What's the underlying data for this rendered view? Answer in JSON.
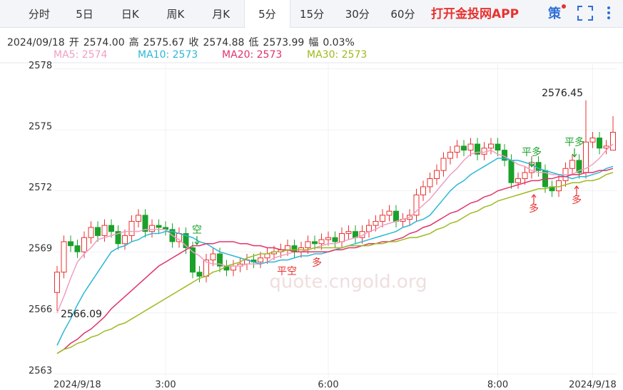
{
  "toolbar": {
    "tabs": [
      "分时",
      "5日",
      "日K",
      "周K",
      "月K",
      "5分",
      "15分",
      "30分",
      "60分"
    ],
    "app_link": "打开金投网APP",
    "strategy": "策"
  },
  "quote": {
    "date": "2024/09/18",
    "fields": [
      {
        "label": "开",
        "value": "2574.00"
      },
      {
        "label": "高",
        "value": "2575.67"
      },
      {
        "label": "收",
        "value": "2574.88"
      },
      {
        "label": "低",
        "value": "2573.99"
      },
      {
        "label": "幅",
        "value": "0.03%"
      }
    ]
  },
  "chart_data": {
    "type": "candlestick",
    "watermark": "quote.cngold.org",
    "signals": [
      "空",
      "平空",
      "多",
      "平多",
      "多",
      "平多",
      "多"
    ],
    "up_color": "#e8312f",
    "down_color": "#1aa12a",
    "ylim": [
      2562.8,
      2578.3
    ],
    "yticks": [
      2563,
      2566,
      2569,
      2572,
      2575,
      2578
    ],
    "grid": true,
    "categories": [
      "2024/9/18",
      null,
      null,
      null,
      null,
      null,
      null,
      null,
      null,
      null,
      null,
      null,
      null,
      null,
      null,
      null,
      "3:00",
      null,
      null,
      null,
      null,
      null,
      null,
      null,
      null,
      null,
      null,
      null,
      null,
      null,
      null,
      null,
      null,
      null,
      null,
      null,
      null,
      null,
      null,
      null,
      "6:00",
      null,
      null,
      null,
      null,
      null,
      null,
      null,
      null,
      null,
      null,
      null,
      null,
      null,
      null,
      null,
      null,
      null,
      null,
      null,
      null,
      null,
      null,
      null,
      null,
      "8:00",
      null,
      null,
      null,
      null,
      null,
      null,
      null,
      null,
      null,
      null,
      null,
      null,
      null,
      "2024/9/18",
      null,
      null,
      null
    ],
    "open": [
      2567.0,
      2568.0,
      2569.5,
      2569.3,
      2569.0,
      2569.7,
      2570.2,
      2569.8,
      2570.3,
      2570.0,
      2569.4,
      2569.8,
      2570.5,
      2570.8,
      2570.0,
      2570.3,
      2570.2,
      2570.1,
      2569.5,
      2569.9,
      2569.2,
      2568.0,
      2567.8,
      2568.6,
      2568.9,
      2568.3,
      2568.1,
      2568.3,
      2568.4,
      2568.6,
      2568.5,
      2568.7,
      2568.9,
      2569.0,
      2569.1,
      2569.3,
      2569.0,
      2569.2,
      2569.5,
      2569.4,
      2569.6,
      2569.7,
      2569.5,
      2569.9,
      2570.0,
      2569.7,
      2570.0,
      2570.3,
      2570.5,
      2570.8,
      2571.0,
      2570.5,
      2570.6,
      2570.8,
      2571.8,
      2572.2,
      2572.6,
      2573.0,
      2573.6,
      2573.9,
      2574.2,
      2574.0,
      2574.3,
      2573.8,
      2574.1,
      2574.3,
      2574.0,
      2573.5,
      2572.4,
      2572.6,
      2572.9,
      2573.4,
      2573.0,
      2572.2,
      2572.0,
      2572.5,
      2573.1,
      2573.5,
      2572.9,
      2574.4,
      2574.6,
      2574.1,
      2574.0
    ],
    "high": [
      2568.3,
      2569.8,
      2569.8,
      2569.6,
      2570.0,
      2570.5,
      2570.5,
      2570.6,
      2570.6,
      2570.3,
      2570.1,
      2570.8,
      2571.1,
      2571.1,
      2570.6,
      2570.6,
      2570.5,
      2570.4,
      2570.2,
      2570.2,
      2569.5,
      2568.3,
      2568.9,
      2569.2,
      2569.2,
      2568.6,
      2568.6,
      2568.7,
      2568.9,
      2568.9,
      2569.0,
      2569.2,
      2569.3,
      2569.4,
      2569.6,
      2569.6,
      2569.5,
      2569.8,
      2569.8,
      2569.9,
      2570.0,
      2570.0,
      2570.2,
      2570.3,
      2570.3,
      2570.3,
      2570.6,
      2570.8,
      2571.1,
      2571.3,
      2571.3,
      2570.9,
      2571.1,
      2572.1,
      2572.5,
      2572.9,
      2573.3,
      2573.9,
      2574.2,
      2574.5,
      2574.5,
      2574.6,
      2574.6,
      2574.4,
      2574.6,
      2574.6,
      2574.3,
      2573.8,
      2572.9,
      2573.2,
      2573.7,
      2573.7,
      2573.3,
      2572.5,
      2572.8,
      2573.4,
      2573.8,
      2573.8,
      2576.45,
      2574.9,
      2574.9,
      2574.5,
      2575.67
    ],
    "low": [
      2566.09,
      2567.7,
      2569.0,
      2568.7,
      2568.7,
      2569.4,
      2569.5,
      2569.5,
      2569.7,
      2569.1,
      2569.1,
      2569.5,
      2570.2,
      2569.7,
      2569.7,
      2569.9,
      2569.8,
      2569.2,
      2569.2,
      2568.9,
      2567.7,
      2567.5,
      2567.5,
      2568.3,
      2568.0,
      2567.8,
      2567.8,
      2568.0,
      2568.1,
      2568.2,
      2568.2,
      2568.4,
      2568.6,
      2568.7,
      2568.8,
      2568.7,
      2568.7,
      2568.9,
      2569.1,
      2569.1,
      2569.3,
      2569.2,
      2569.2,
      2569.6,
      2569.4,
      2569.4,
      2569.7,
      2570.0,
      2570.2,
      2570.5,
      2570.2,
      2570.2,
      2570.3,
      2570.5,
      2571.5,
      2571.9,
      2572.3,
      2572.7,
      2573.3,
      2573.6,
      2573.7,
      2573.7,
      2573.5,
      2573.5,
      2573.8,
      2573.7,
      2573.2,
      2572.1,
      2572.1,
      2572.3,
      2572.6,
      2572.7,
      2571.9,
      2571.7,
      2571.7,
      2572.2,
      2572.8,
      2572.6,
      2572.6,
      2574.1,
      2573.8,
      2573.8,
      2573.99
    ],
    "close": [
      2568.0,
      2569.5,
      2569.3,
      2569.0,
      2569.7,
      2570.2,
      2569.8,
      2570.3,
      2570.0,
      2569.4,
      2569.8,
      2570.5,
      2570.8,
      2570.0,
      2570.3,
      2570.2,
      2570.1,
      2569.5,
      2569.9,
      2569.2,
      2568.0,
      2567.8,
      2568.6,
      2568.9,
      2568.3,
      2568.1,
      2568.3,
      2568.4,
      2568.6,
      2568.5,
      2568.7,
      2568.9,
      2569.0,
      2569.1,
      2569.3,
      2569.0,
      2569.2,
      2569.5,
      2569.4,
      2569.6,
      2569.7,
      2569.5,
      2569.9,
      2570.0,
      2569.7,
      2570.0,
      2570.3,
      2570.5,
      2570.8,
      2571.0,
      2570.5,
      2570.6,
      2570.8,
      2571.8,
      2572.2,
      2572.6,
      2573.0,
      2573.6,
      2573.9,
      2574.2,
      2574.0,
      2574.3,
      2573.8,
      2574.1,
      2574.3,
      2574.0,
      2573.5,
      2572.4,
      2572.6,
      2572.9,
      2573.4,
      2573.0,
      2572.2,
      2572.0,
      2572.5,
      2573.1,
      2573.5,
      2572.9,
      2574.4,
      2574.6,
      2574.1,
      2574.2,
      2574.88
    ],
    "series": [
      {
        "name": "MA5: 2574",
        "color": "#f19ec2",
        "values": [
          2566.0,
          2566.8,
          2567.7,
          2568.5,
          2568.9,
          2569.2,
          2569.6,
          2569.7,
          2569.8,
          2569.9,
          2570.0,
          2570.0,
          2570.0,
          2570.1,
          2570.1,
          2570.1,
          2570.1,
          2569.8,
          2569.6,
          2569.3,
          2569.0,
          2568.8,
          2568.5,
          2568.4,
          2568.4,
          2568.3,
          2568.3,
          2568.3,
          2568.4,
          2568.4,
          2568.4,
          2568.5,
          2568.7,
          2568.8,
          2568.9,
          2569.0,
          2569.0,
          2569.1,
          2569.2,
          2569.3,
          2569.4,
          2569.4,
          2569.5,
          2569.6,
          2569.7,
          2569.8,
          2570.0,
          2570.1,
          2570.3,
          2570.4,
          2570.5,
          2570.6,
          2570.7,
          2571.0,
          2571.3,
          2571.6,
          2572.0,
          2572.4,
          2572.8,
          2573.1,
          2573.5,
          2573.8,
          2573.9,
          2573.9,
          2574.0,
          2573.8,
          2573.7,
          2573.5,
          2573.3,
          2573.2,
          2573.0,
          2572.9,
          2572.9,
          2572.8,
          2572.8,
          2572.8,
          2572.8,
          2573.0,
          2573.1,
          2573.3,
          2573.6,
          2574.0,
          2574.3
        ]
      },
      {
        "name": "MA10: 2573",
        "color": "#2bb7d6",
        "values": [
          2564.4,
          2565.1,
          2565.7,
          2566.4,
          2567.0,
          2567.5,
          2568.0,
          2568.5,
          2569.0,
          2569.2,
          2569.3,
          2569.5,
          2569.6,
          2569.8,
          2569.9,
          2569.9,
          2570.0,
          2570.0,
          2569.9,
          2569.8,
          2569.7,
          2569.5,
          2569.4,
          2569.2,
          2569.0,
          2568.9,
          2568.8,
          2568.7,
          2568.6,
          2568.5,
          2568.4,
          2568.5,
          2568.5,
          2568.6,
          2568.6,
          2568.7,
          2568.8,
          2568.8,
          2568.9,
          2568.9,
          2569.0,
          2569.1,
          2569.2,
          2569.3,
          2569.4,
          2569.5,
          2569.6,
          2569.7,
          2569.8,
          2569.9,
          2570.0,
          2570.2,
          2570.3,
          2570.5,
          2570.6,
          2570.8,
          2571.2,
          2571.6,
          2572.0,
          2572.3,
          2572.5,
          2572.8,
          2573.0,
          2573.2,
          2573.4,
          2573.6,
          2573.6,
          2573.5,
          2573.5,
          2573.4,
          2573.3,
          2573.1,
          2573.0,
          2572.9,
          2572.8,
          2572.7,
          2572.6,
          2572.7,
          2572.7,
          2572.8,
          2572.9,
          2573.1,
          2573.2
        ]
      },
      {
        "name": "MA20: 2573",
        "color": "#e0336b",
        "values": [
          2564.0,
          2564.2,
          2564.5,
          2564.7,
          2565.0,
          2565.2,
          2565.5,
          2565.8,
          2566.2,
          2566.5,
          2566.8,
          2567.1,
          2567.4,
          2567.7,
          2568.0,
          2568.3,
          2568.5,
          2568.7,
          2568.9,
          2569.1,
          2569.3,
          2569.3,
          2569.4,
          2569.4,
          2569.5,
          2569.5,
          2569.5,
          2569.4,
          2569.4,
          2569.3,
          2569.3,
          2569.2,
          2569.2,
          2569.1,
          2569.1,
          2569.0,
          2569.0,
          2569.0,
          2569.0,
          2569.0,
          2569.0,
          2569.1,
          2569.1,
          2569.2,
          2569.2,
          2569.3,
          2569.4,
          2569.4,
          2569.5,
          2569.5,
          2569.6,
          2569.7,
          2569.9,
          2570.0,
          2570.2,
          2570.3,
          2570.5,
          2570.7,
          2570.9,
          2571.0,
          2571.2,
          2571.4,
          2571.5,
          2571.7,
          2571.8,
          2572.0,
          2572.1,
          2572.2,
          2572.3,
          2572.4,
          2572.5,
          2572.5,
          2572.6,
          2572.6,
          2572.7,
          2572.7,
          2572.8,
          2572.8,
          2572.9,
          2572.9,
          2573.0,
          2573.0,
          2573.1
        ]
      },
      {
        "name": "MA30: 2573",
        "color": "#9dba1f",
        "values": [
          2564.0,
          2564.2,
          2564.3,
          2564.5,
          2564.6,
          2564.8,
          2564.9,
          2565.1,
          2565.2,
          2565.4,
          2565.5,
          2565.7,
          2565.9,
          2566.1,
          2566.3,
          2566.5,
          2566.7,
          2566.9,
          2567.1,
          2567.3,
          2567.5,
          2567.7,
          2567.8,
          2568.0,
          2568.1,
          2568.3,
          2568.4,
          2568.5,
          2568.7,
          2568.8,
          2568.9,
          2568.9,
          2569.0,
          2569.0,
          2569.1,
          2569.1,
          2569.1,
          2569.1,
          2569.2,
          2569.2,
          2569.2,
          2569.2,
          2569.2,
          2569.3,
          2569.3,
          2569.3,
          2569.3,
          2569.4,
          2569.4,
          2569.5,
          2569.5,
          2569.6,
          2569.7,
          2569.7,
          2569.8,
          2569.9,
          2570.1,
          2570.2,
          2570.4,
          2570.5,
          2570.7,
          2570.9,
          2571.0,
          2571.2,
          2571.3,
          2571.5,
          2571.6,
          2571.7,
          2571.8,
          2571.9,
          2572.0,
          2572.1,
          2572.1,
          2572.2,
          2572.2,
          2572.3,
          2572.4,
          2572.4,
          2572.5,
          2572.5,
          2572.6,
          2572.8,
          2572.9
        ]
      }
    ]
  }
}
